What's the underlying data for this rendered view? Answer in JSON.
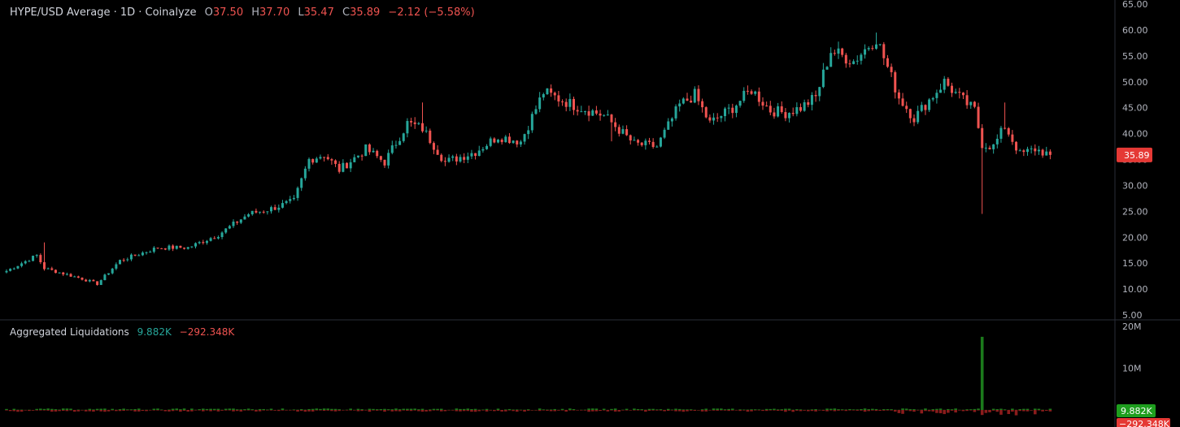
{
  "header": {
    "symbol": "HYPE/USD Average · 1D · Coinalyze",
    "open_label": "O",
    "open": "37.50",
    "high_label": "H",
    "high": "37.70",
    "low_label": "L",
    "low": "35.47",
    "close_label": "C",
    "close": "35.89",
    "change": "−2.12 (−5.58%)"
  },
  "liquidations": {
    "title": "Aggregated Liquidations",
    "long_value": "9.882K",
    "short_value": "−292.348K"
  },
  "colors": {
    "up": "#26a69a",
    "down": "#ef5350",
    "liq_up": "#1b7a1b",
    "liq_down": "#8b1c1c",
    "badge_green": "#1e9e1e",
    "badge_red": "#e53935"
  },
  "chart_data": [
    {
      "type": "candlestick",
      "title": "HYPE/USD Average · 1D · Coinalyze",
      "y_ticks": [
        "65.00",
        "60.00",
        "55.00",
        "50.00",
        "45.00",
        "40.00",
        "35.00",
        "30.00",
        "25.00",
        "20.00",
        "15.00",
        "10.00",
        "5.00"
      ],
      "ylim": [
        5,
        65
      ],
      "last_price_label": "35.89",
      "key_points": [
        {
          "i": 0,
          "v": 13.5
        },
        {
          "i": 8,
          "v": 16.5
        },
        {
          "i": 10,
          "v": 14.0
        },
        {
          "i": 20,
          "v": 12.0
        },
        {
          "i": 24,
          "v": 11.0
        },
        {
          "i": 30,
          "v": 15.5
        },
        {
          "i": 40,
          "v": 18.0
        },
        {
          "i": 48,
          "v": 18.0
        },
        {
          "i": 56,
          "v": 20.5
        },
        {
          "i": 64,
          "v": 24.5
        },
        {
          "i": 70,
          "v": 25.5
        },
        {
          "i": 76,
          "v": 27.0
        },
        {
          "i": 80,
          "v": 35.0
        },
        {
          "i": 84,
          "v": 36.0
        },
        {
          "i": 88,
          "v": 33.0
        },
        {
          "i": 95,
          "v": 37.0
        },
        {
          "i": 100,
          "v": 34.5
        },
        {
          "i": 106,
          "v": 42.0
        },
        {
          "i": 110,
          "v": 41.0
        },
        {
          "i": 116,
          "v": 34.5
        },
        {
          "i": 124,
          "v": 36.5
        },
        {
          "i": 130,
          "v": 39.5
        },
        {
          "i": 136,
          "v": 38.5
        },
        {
          "i": 142,
          "v": 48.0
        },
        {
          "i": 150,
          "v": 45.5
        },
        {
          "i": 158,
          "v": 43.5
        },
        {
          "i": 166,
          "v": 38.0
        },
        {
          "i": 172,
          "v": 37.5
        },
        {
          "i": 178,
          "v": 45.5
        },
        {
          "i": 182,
          "v": 47.5
        },
        {
          "i": 186,
          "v": 42.0
        },
        {
          "i": 192,
          "v": 45.0
        },
        {
          "i": 197,
          "v": 48.5
        },
        {
          "i": 202,
          "v": 44.5
        },
        {
          "i": 206,
          "v": 44.0
        },
        {
          "i": 210,
          "v": 45.0
        },
        {
          "i": 214,
          "v": 47.0
        },
        {
          "i": 218,
          "v": 56.0
        },
        {
          "i": 224,
          "v": 54.0
        },
        {
          "i": 230,
          "v": 58.5
        },
        {
          "i": 236,
          "v": 47.0
        },
        {
          "i": 240,
          "v": 43.0
        },
        {
          "i": 244,
          "v": 46.5
        },
        {
          "i": 248,
          "v": 50.0
        },
        {
          "i": 252,
          "v": 47.0
        },
        {
          "i": 256,
          "v": 44.5
        },
        {
          "i": 258,
          "v": 38.0
        },
        {
          "i": 261,
          "v": 37.5
        },
        {
          "i": 264,
          "v": 41.5
        },
        {
          "i": 268,
          "v": 36.0
        },
        {
          "i": 272,
          "v": 37.0
        },
        {
          "i": 276,
          "v": 35.89
        }
      ],
      "wick_events": [
        {
          "i": 10,
          "high": 19.0
        },
        {
          "i": 110,
          "high": 46.0
        },
        {
          "i": 160,
          "low": 38.5
        },
        {
          "i": 258,
          "low": 24.5
        },
        {
          "i": 264,
          "high": 46.0
        },
        {
          "i": 230,
          "high": 59.5
        }
      ]
    },
    {
      "type": "bar",
      "title": "Aggregated Liquidations",
      "y_ticks": [
        "20M",
        "10M"
      ],
      "ylim": [
        -2,
        20
      ],
      "spike": {
        "i": 258,
        "value": 17.5
      },
      "last_long_label": "9.882K",
      "last_short_label": "−292.348K"
    }
  ]
}
